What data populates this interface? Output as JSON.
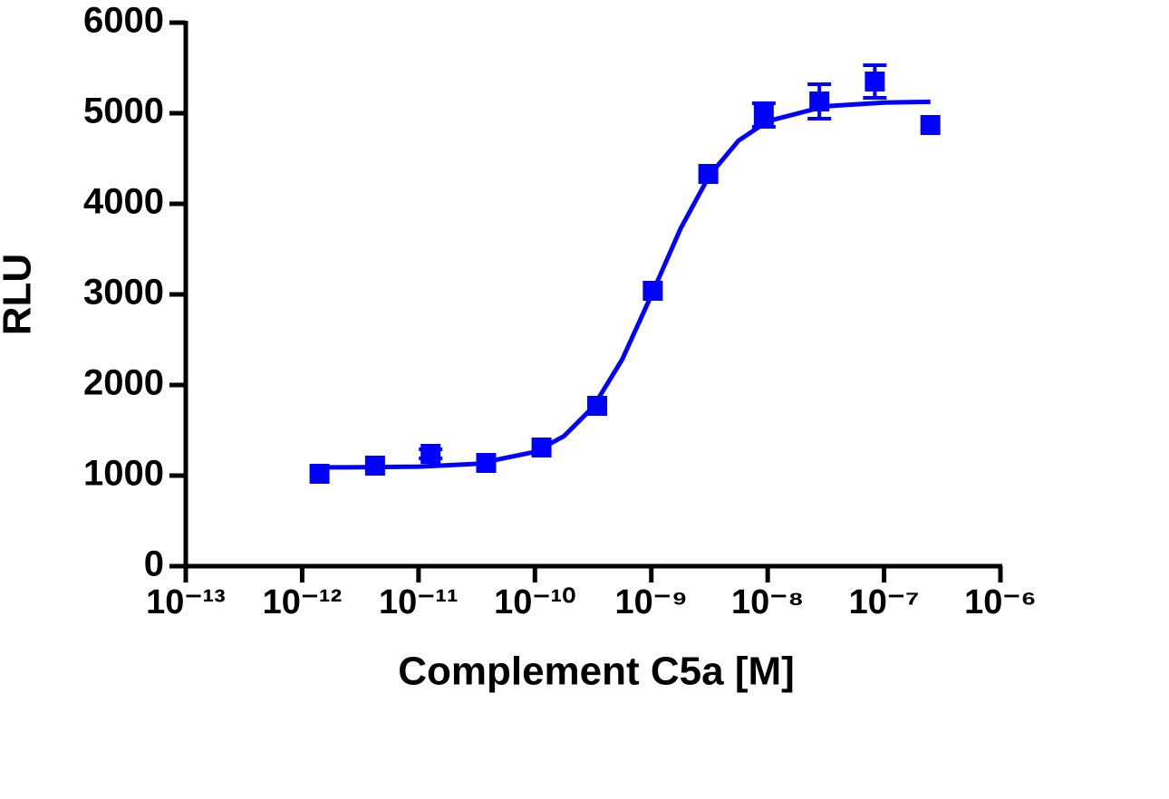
{
  "chart_data": {
    "type": "scatter",
    "x_label": "Complement C5a [M]",
    "y_label": "RLU",
    "x_scale": "log",
    "xlim": [
      1e-13,
      1e-06
    ],
    "xticks": [
      {
        "value": 1e-13,
        "label": "10⁻¹³"
      },
      {
        "value": 1e-12,
        "label": "10⁻¹²"
      },
      {
        "value": 1e-11,
        "label": "10⁻¹¹"
      },
      {
        "value": 1e-10,
        "label": "10⁻¹⁰"
      },
      {
        "value": 1e-09,
        "label": "10⁻⁹"
      },
      {
        "value": 1e-08,
        "label": "10⁻⁸"
      },
      {
        "value": 1e-07,
        "label": "10⁻⁷"
      },
      {
        "value": 1e-06,
        "label": "10⁻⁶"
      }
    ],
    "ylim": [
      0,
      6000
    ],
    "yticks": [
      0,
      1000,
      2000,
      3000,
      4000,
      5000,
      6000
    ],
    "series": [
      {
        "color": "#0000ff",
        "x": [
          1.41e-12,
          4.23e-12,
          1.27e-11,
          3.81e-11,
          1.14e-10,
          3.43e-10,
          1.03e-09,
          3.09e-09,
          9.26e-09,
          2.78e-08,
          8.33e-08,
          2.5e-07
        ],
        "values": [
          1020,
          1110,
          1240,
          1140,
          1310,
          1770,
          3040,
          4330,
          4980,
          5130,
          5350,
          4870
        ],
        "errors": [
          0,
          0,
          50,
          0,
          0,
          0,
          0,
          0,
          130,
          190,
          180,
          0
        ]
      }
    ],
    "fit": {
      "color": "#0000ff",
      "x": [
        1.41e-12,
        3.16e-12,
        1e-11,
        3.16e-11,
        1e-10,
        1.78e-10,
        3.16e-10,
        5.62e-10,
        1e-09,
        1.78e-09,
        3.16e-09,
        5.62e-09,
        1e-08,
        3.16e-08,
        1e-07,
        2.5e-07
      ],
      "values": [
        1091,
        1092,
        1099,
        1130,
        1262,
        1436,
        1757,
        2282,
        2989,
        3724,
        4314,
        4698,
        4912,
        5078,
        5118,
        5126
      ]
    }
  }
}
